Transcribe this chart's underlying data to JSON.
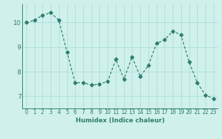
{
  "x": [
    0,
    1,
    2,
    3,
    4,
    5,
    6,
    7,
    8,
    9,
    10,
    11,
    12,
    13,
    14,
    15,
    16,
    17,
    18,
    19,
    20,
    21,
    22,
    23
  ],
  "y": [
    10.0,
    10.1,
    10.3,
    10.4,
    10.1,
    8.8,
    7.55,
    7.55,
    7.45,
    7.5,
    7.6,
    8.5,
    7.7,
    8.6,
    7.8,
    8.25,
    9.15,
    9.3,
    9.65,
    9.5,
    8.4,
    7.55,
    7.05,
    6.9
  ],
  "line_color": "#2e7d6e",
  "marker": "D",
  "marker_size": 2.5,
  "bg_color": "#cff0eb",
  "grid_color": "#aaddda",
  "xlabel": "Humidex (Indice chaleur)",
  "yticks": [
    7,
    8,
    9,
    10
  ],
  "xticks": [
    0,
    1,
    2,
    3,
    4,
    5,
    6,
    7,
    8,
    9,
    10,
    11,
    12,
    13,
    14,
    15,
    16,
    17,
    18,
    19,
    20,
    21,
    22,
    23
  ],
  "xlim": [
    -0.5,
    23.5
  ],
  "ylim": [
    6.5,
    10.75
  ],
  "tick_color": "#2e7d6e",
  "label_fontsize": 6.5,
  "tick_fontsize": 5.5
}
